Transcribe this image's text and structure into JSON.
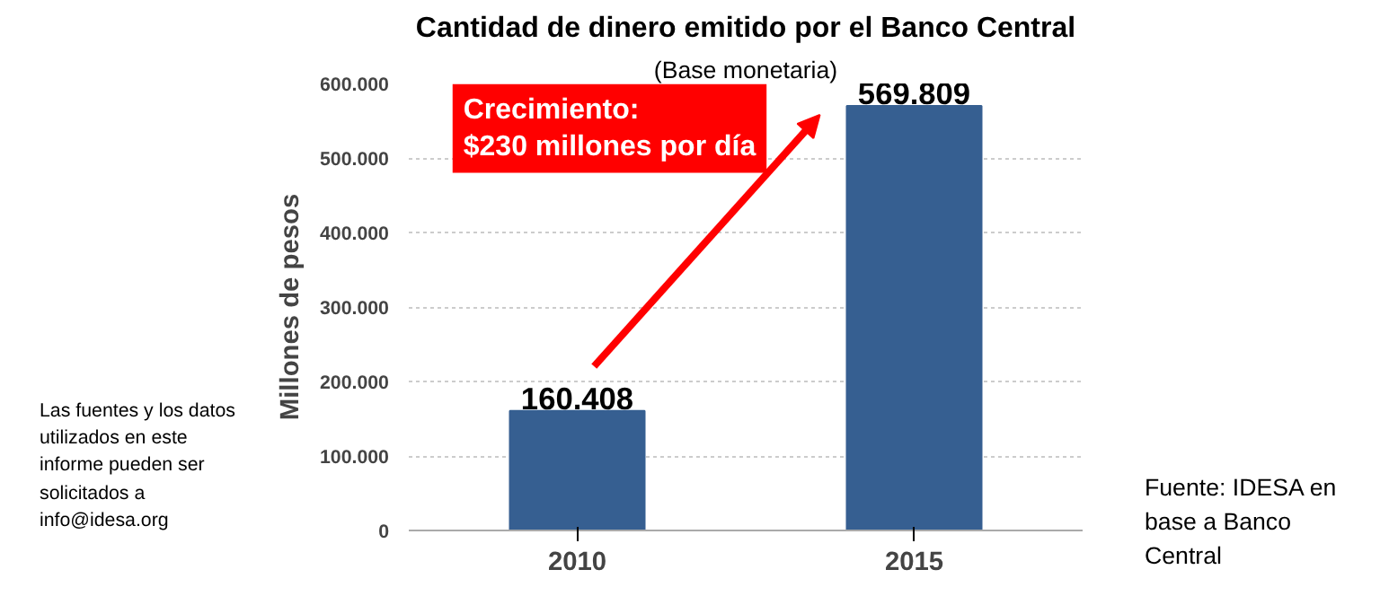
{
  "chart_data": {
    "type": "bar",
    "title": "Cantidad de dinero emitido por el Banco Central",
    "subtitle": "(Base monetaria)",
    "ylabel": "Millones de pesos",
    "categories": [
      "2010",
      "2015"
    ],
    "values": [
      160408,
      569809
    ],
    "color": "#365f91",
    "value_labels": [
      "160.408",
      "569.809"
    ],
    "ylim": [
      0,
      600000
    ],
    "yticks": [
      {
        "value": 0,
        "label": "0"
      },
      {
        "value": 100000,
        "label": "100.000"
      },
      {
        "value": 200000,
        "label": "200.000"
      },
      {
        "value": 300000,
        "label": "300.000"
      },
      {
        "value": 400000,
        "label": "400.000"
      },
      {
        "value": 500000,
        "label": "500.000"
      },
      {
        "value": 600000,
        "label": "600.000"
      }
    ],
    "grid": "y",
    "annotations": [
      "Crecimiento:\n$230 millones por día",
      "Las fuentes y los datos utilizados en este informe pueden ser solicitados a info@idesa.org",
      "Fuente: IDESA en base a Banco Central"
    ]
  }
}
